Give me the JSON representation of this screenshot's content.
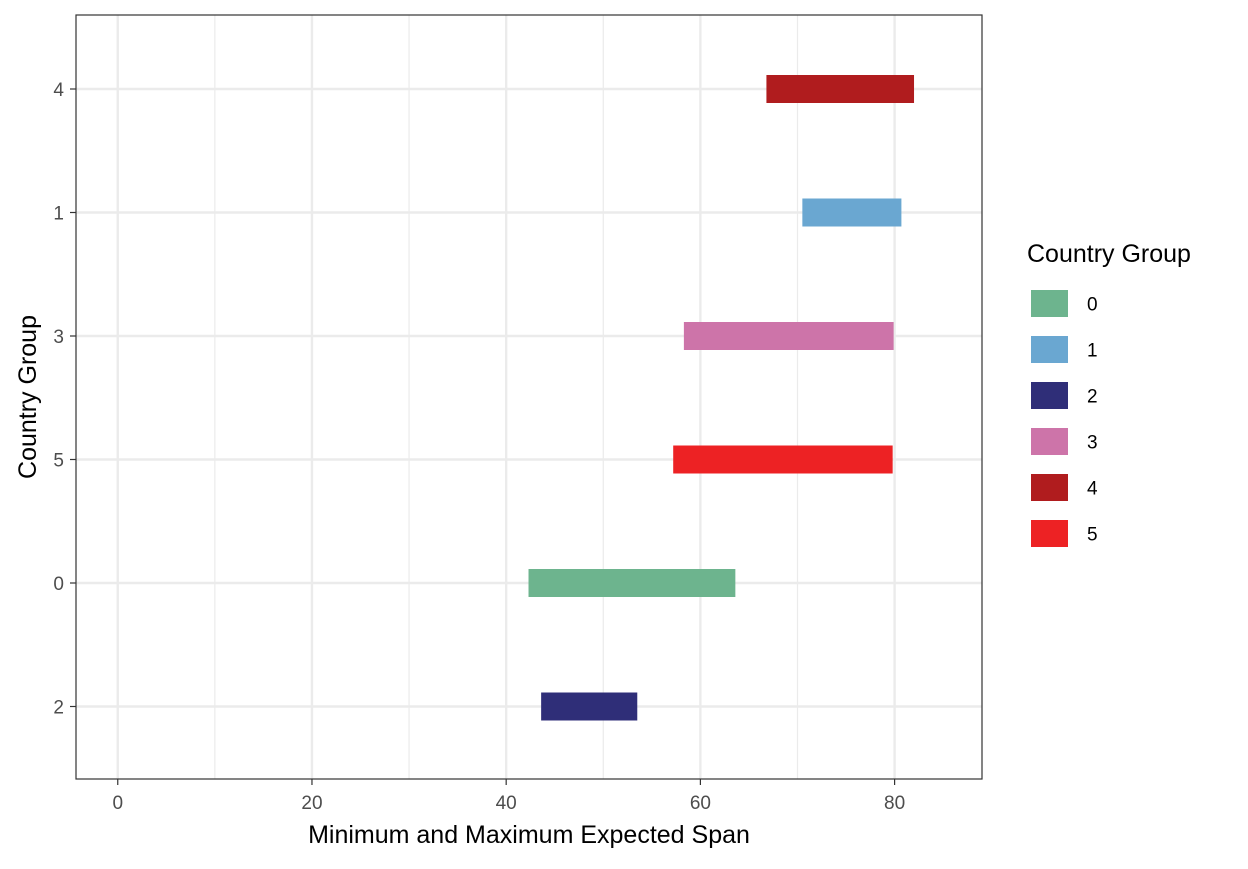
{
  "chart_data": {
    "type": "bar",
    "orientation": "horizontal-range",
    "xlabel": "Minimum and Maximum Expected Span",
    "ylabel": "Country Group",
    "xlim": [
      -4.3,
      89
    ],
    "x_ticks": [
      0,
      20,
      40,
      60,
      80
    ],
    "x_tick_labels": [
      "0",
      "20",
      "40",
      "60",
      "80"
    ],
    "grid": true,
    "categories": [
      "4",
      "1",
      "3",
      "5",
      "0",
      "2"
    ],
    "ranges": [
      {
        "group": "4",
        "min": 66.8,
        "max": 82.0
      },
      {
        "group": "1",
        "min": 70.5,
        "max": 80.7
      },
      {
        "group": "3",
        "min": 58.3,
        "max": 79.9
      },
      {
        "group": "5",
        "min": 57.2,
        "max": 79.8
      },
      {
        "group": "0",
        "min": 42.3,
        "max": 63.6
      },
      {
        "group": "2",
        "min": 43.6,
        "max": 53.5
      }
    ],
    "legend": {
      "title": "Country Group",
      "position": "right",
      "entries": [
        {
          "label": "0",
          "color": "#6db48e"
        },
        {
          "label": "1",
          "color": "#6aa7d1"
        },
        {
          "label": "2",
          "color": "#2f2e78"
        },
        {
          "label": "3",
          "color": "#cd74a9"
        },
        {
          "label": "4",
          "color": "#b01c1e"
        },
        {
          "label": "5",
          "color": "#ed2224"
        }
      ]
    }
  }
}
